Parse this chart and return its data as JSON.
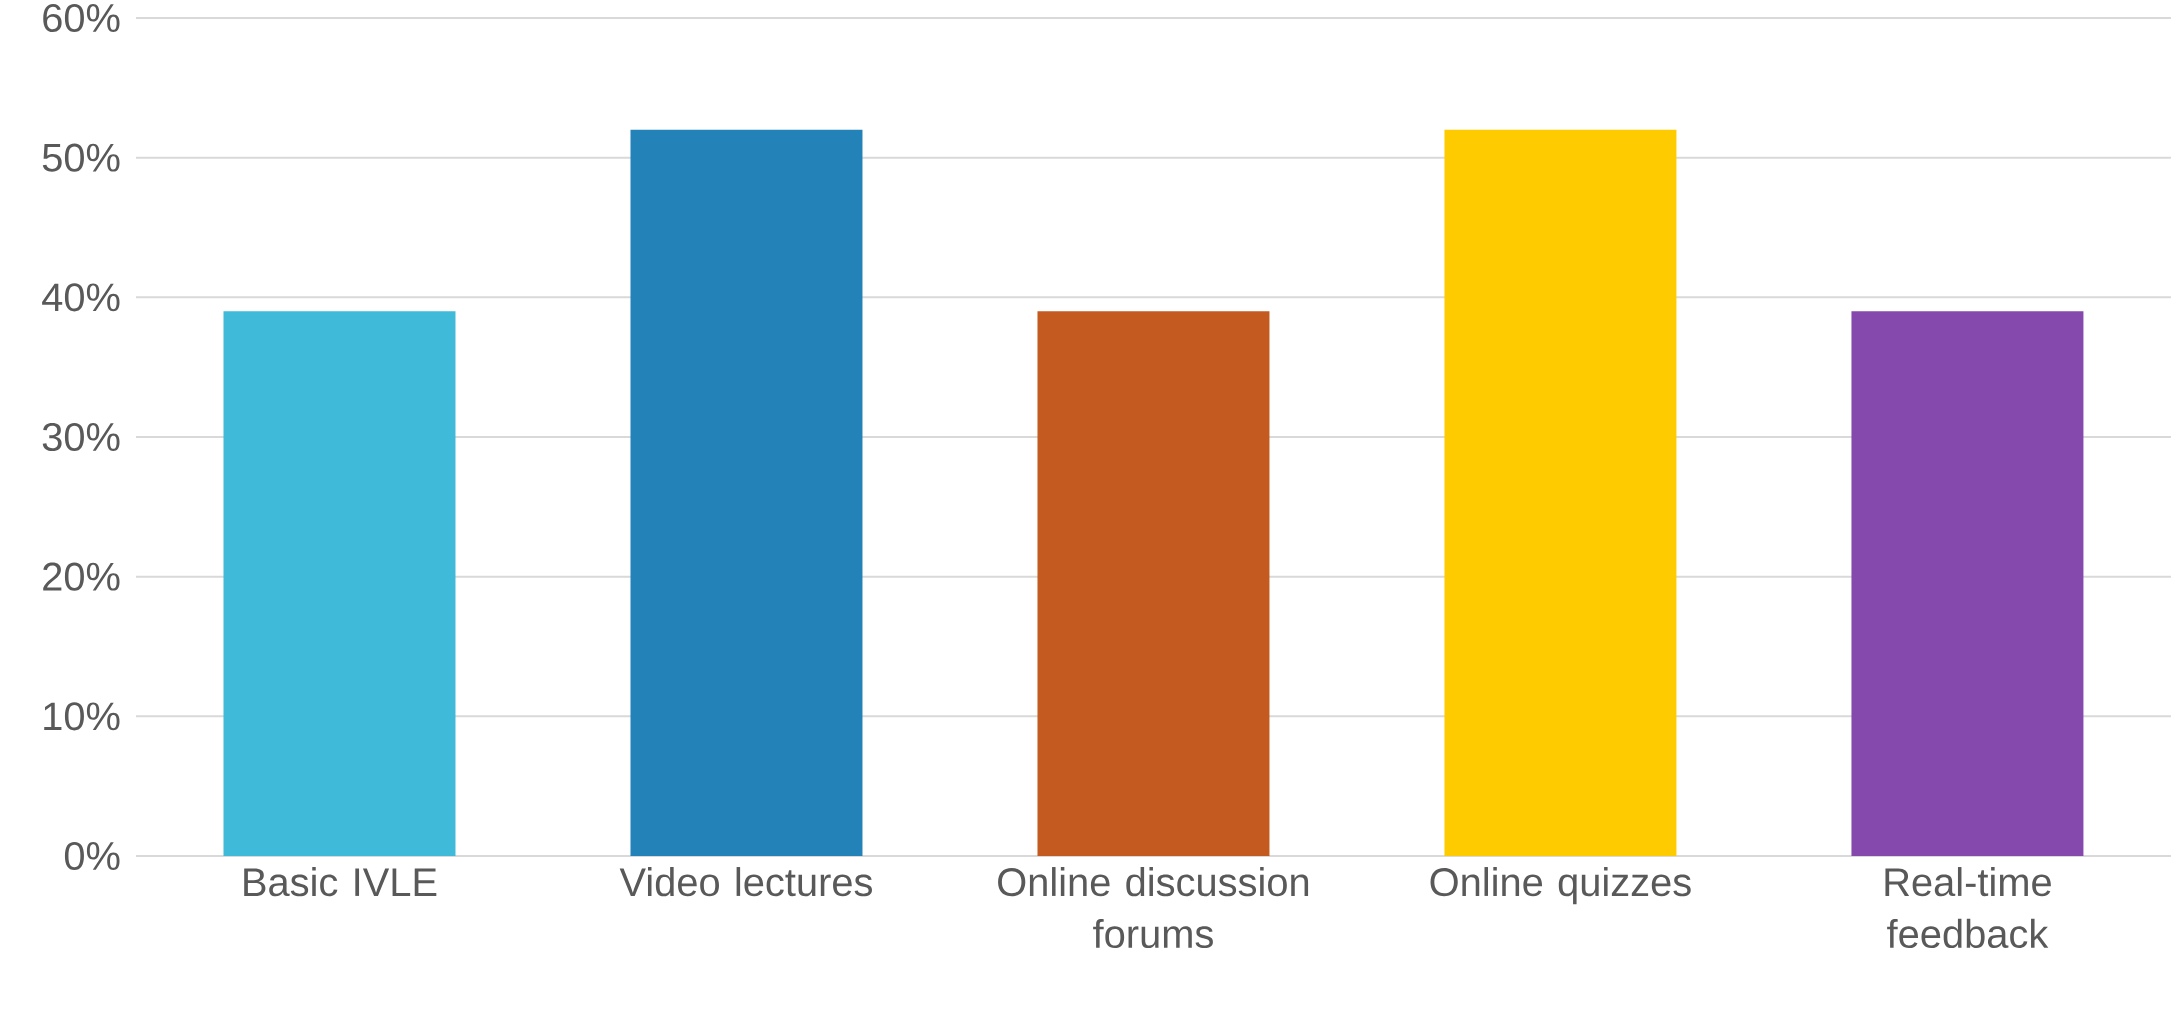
{
  "chart_data": {
    "type": "bar",
    "categories": [
      "Basic IVLE",
      "Video lectures",
      "Online discussion forums",
      "Online quizzes",
      "Real-time feedback"
    ],
    "values": [
      39,
      52,
      39,
      52,
      39
    ],
    "colors": [
      "#3fbad8",
      "#2383b8",
      "#c55a20",
      "#fecb00",
      "#8549ad"
    ],
    "ylim": [
      0,
      60
    ],
    "yticks": [
      {
        "value": 0,
        "label": "0%"
      },
      {
        "value": 10,
        "label": "10%"
      },
      {
        "value": 20,
        "label": "20%"
      },
      {
        "value": 30,
        "label": "30%"
      },
      {
        "value": 40,
        "label": "40%"
      },
      {
        "value": 50,
        "label": "50%"
      },
      {
        "value": 60,
        "label": "60%"
      }
    ],
    "grid": "y"
  }
}
